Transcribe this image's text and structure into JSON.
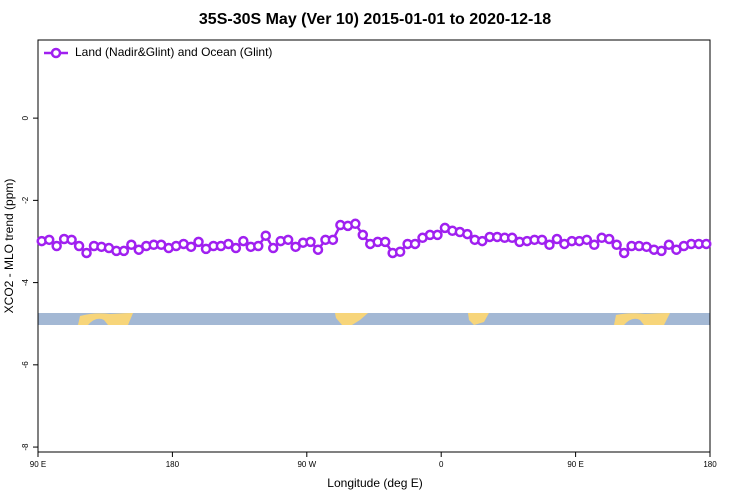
{
  "chart_data": {
    "type": "line",
    "title": "35S-30S May (Ver 10)   2015-01-01 to 2020-12-18",
    "x_label": "Longitude (deg E)",
    "y_label": "XCO2 - MLO trend (ppm)",
    "x": [
      92.5,
      97.5,
      102.5,
      107.5,
      112.5,
      117.5,
      122.5,
      127.5,
      132.5,
      137.5,
      142.5,
      147.5,
      152.5,
      157.5,
      162.5,
      167.5,
      172.5,
      177.5,
      182.5,
      187.5,
      192.5,
      197.5,
      202.5,
      207.5,
      212.5,
      217.5,
      222.5,
      227.5,
      232.5,
      237.5,
      242.5,
      247.5,
      252.5,
      257.5,
      262.5,
      267.5,
      272.5,
      277.5,
      282.5,
      287.5,
      292.5,
      297.5,
      302.5,
      307.5,
      312.5,
      317.5,
      322.5,
      327.5,
      332.5,
      337.5,
      342.5,
      347.5,
      352.5,
      357.5,
      362.5,
      367.5,
      372.5,
      377.5,
      382.5,
      387.5,
      392.5,
      397.5,
      402.5,
      407.5,
      412.5,
      417.5,
      422.5,
      427.5,
      432.5,
      437.5,
      442.5,
      447.5,
      452.5,
      457.5,
      462.5,
      467.5,
      472.5,
      477.5,
      482.5,
      487.5,
      492.5,
      497.5,
      502.5,
      507.5,
      512.5,
      517.5,
      522.5,
      527.5,
      532.5,
      537.5
    ],
    "series": [
      {
        "name": "Land (Nadir&Glint) and Ocean (Glint)",
        "color": "#a020f0",
        "values": [
          -2.99,
          -2.96,
          -3.11,
          -2.94,
          -2.96,
          -3.11,
          -3.28,
          -3.11,
          -3.13,
          -3.16,
          -3.23,
          -3.23,
          -3.08,
          -3.2,
          -3.11,
          -3.08,
          -3.08,
          -3.16,
          -3.11,
          -3.06,
          -3.13,
          -3.01,
          -3.18,
          -3.11,
          -3.11,
          -3.06,
          -3.16,
          -2.99,
          -3.13,
          -3.11,
          -2.86,
          -3.16,
          -2.99,
          -2.96,
          -3.13,
          -3.03,
          -3.01,
          -3.2,
          -2.96,
          -2.96,
          -2.6,
          -2.62,
          -2.57,
          -2.84,
          -3.06,
          -3.01,
          -3.01,
          -3.28,
          -3.25,
          -3.06,
          -3.06,
          -2.91,
          -2.84,
          -2.84,
          -2.67,
          -2.74,
          -2.77,
          -2.82,
          -2.96,
          -2.99,
          -2.89,
          -2.89,
          -2.91,
          -2.91,
          -3.01,
          -2.99,
          -2.96,
          -2.96,
          -3.08,
          -2.94,
          -3.06,
          -2.99,
          -2.99,
          -2.96,
          -3.08,
          -2.91,
          -2.94,
          -3.08,
          -3.28,
          -3.11,
          -3.11,
          -3.13,
          -3.2,
          -3.23,
          -3.08,
          -3.2,
          -3.11,
          -3.06,
          -3.06,
          -3.06
        ]
      }
    ],
    "xlim": [
      90,
      540
    ],
    "xticks": [
      {
        "value": 90,
        "label": "90 E"
      },
      180,
      {
        "value": 270,
        "label": "90 W"
      },
      {
        "value": 360,
        "label": "0"
      },
      {
        "value": 450,
        "label": "90 E"
      },
      {
        "value": 540,
        "label": "180"
      }
    ],
    "ylim": [
      -8.12,
      1.9
    ],
    "yticks": [
      0,
      -2,
      -4,
      -6,
      -8
    ],
    "legend": "top-left"
  }
}
